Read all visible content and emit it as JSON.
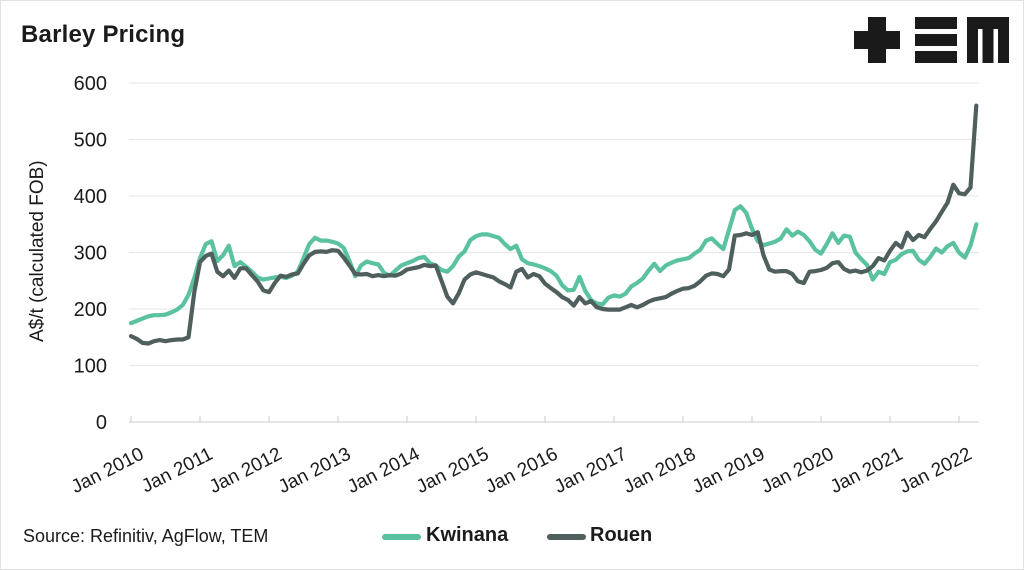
{
  "header": {
    "title": "Barley Pricing",
    "logo": "TEM"
  },
  "footer": {
    "source_label": "Source: Refinitiv, AgFlow, TEM"
  },
  "legend": [
    {
      "name": "Kwinana",
      "color": "#5ac2a0"
    },
    {
      "name": "Rouen",
      "color": "#4f5f5e"
    }
  ],
  "colors": {
    "kwinana": "#5ac2a0",
    "rouen": "#4f5f5e",
    "gridline": "#e9e9e9",
    "axis": "#d6d6d6",
    "text": "#1b1b1b"
  },
  "chart_data": {
    "type": "line",
    "title": "Barley Pricing",
    "xlabel": "",
    "ylabel": "A$/t (calculated FOB)",
    "ylim": [
      0,
      600
    ],
    "yticks": [
      0,
      100,
      200,
      300,
      400,
      500,
      600
    ],
    "xticks": [
      "Jan 2010",
      "Jan 2011",
      "Jan 2012",
      "Jan 2013",
      "Jan 2014",
      "Jan 2015",
      "Jan 2016",
      "Jan 2017",
      "Jan 2018",
      "Jan 2019",
      "Jan 2020",
      "Jan 2021",
      "Jan 2022"
    ],
    "x_frequency": "monthly",
    "x_range": "Jan 2010 - Apr 2022",
    "grid": "horizontal",
    "legend_position": "bottom",
    "series": [
      {
        "name": "Kwinana",
        "color": "#5ac2a0",
        "values": [
          175,
          179,
          183,
          187,
          189,
          189,
          190,
          194,
          199,
          207,
          225,
          255,
          290,
          315,
          320,
          285,
          295,
          312,
          276,
          283,
          275,
          266,
          256,
          252,
          254,
          256,
          257,
          255,
          259,
          266,
          290,
          315,
          326,
          321,
          321,
          319,
          316,
          308,
          285,
          258,
          277,
          284,
          281,
          279,
          264,
          259,
          268,
          277,
          281,
          285,
          290,
          292,
          281,
          277,
          269,
          266,
          276,
          293,
          302,
          322,
          329,
          332,
          332,
          329,
          326,
          315,
          306,
          312,
          288,
          281,
          279,
          276,
          272,
          267,
          259,
          242,
          233,
          234,
          257,
          232,
          216,
          210,
          208,
          220,
          224,
          222,
          227,
          240,
          246,
          254,
          268,
          280,
          267,
          277,
          282,
          286,
          288,
          290,
          298,
          305,
          321,
          325,
          315,
          306,
          340,
          375,
          382,
          370,
          342,
          320,
          313,
          316,
          319,
          325,
          341,
          330,
          337,
          331,
          320,
          305,
          298,
          315,
          334,
          317,
          330,
          328,
          300,
          288,
          278,
          252,
          266,
          262,
          283,
          287,
          297,
          302,
          303,
          287,
          280,
          292,
          307,
          300,
          311,
          317,
          300,
          291,
          312,
          350
        ]
      },
      {
        "name": "Rouen",
        "color": "#4f5f5e",
        "values": [
          152,
          147,
          140,
          139,
          143,
          145,
          143,
          145,
          146,
          146,
          150,
          230,
          283,
          294,
          298,
          266,
          258,
          268,
          255,
          272,
          272,
          260,
          249,
          233,
          230,
          246,
          259,
          257,
          261,
          263,
          280,
          295,
          301,
          302,
          301,
          304,
          303,
          291,
          277,
          262,
          261,
          262,
          258,
          260,
          258,
          260,
          259,
          263,
          270,
          272,
          274,
          278,
          276,
          277,
          250,
          222,
          210,
          228,
          252,
          261,
          265,
          262,
          259,
          256,
          249,
          244,
          238,
          266,
          271,
          256,
          262,
          258,
          245,
          237,
          230,
          221,
          216,
          206,
          221,
          210,
          214,
          203,
          200,
          199,
          199,
          199,
          203,
          207,
          203,
          207,
          213,
          217,
          219,
          221,
          227,
          232,
          236,
          237,
          241,
          249,
          259,
          263,
          262,
          258,
          270,
          330,
          331,
          334,
          331,
          336,
          295,
          270,
          266,
          267,
          267,
          262,
          249,
          246,
          266,
          267,
          269,
          273,
          281,
          283,
          271,
          266,
          268,
          265,
          268,
          276,
          290,
          286,
          303,
          317,
          309,
          335,
          322,
          331,
          327,
          342,
          355,
          372,
          388,
          420,
          405,
          403,
          415,
          560
        ]
      }
    ]
  }
}
